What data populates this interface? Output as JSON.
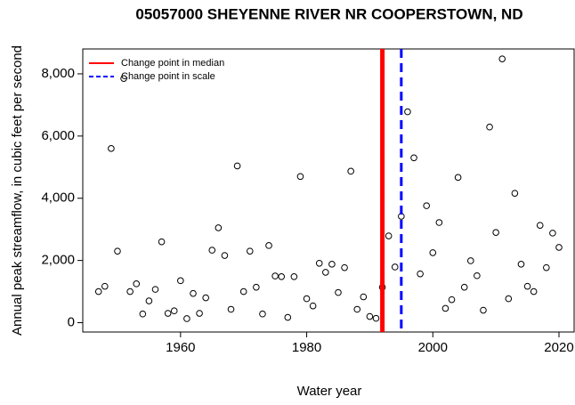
{
  "chart_data": {
    "type": "scatter",
    "title": "05057000 SHEYENNE RIVER NR COOPERSTOWN, ND",
    "x_label": "Water year",
    "y_label": "Annual peak streamflow, in cubic feet per second",
    "xlim": [
      1944.5,
      2022.4
    ],
    "ylim": [
      -300,
      8800
    ],
    "xticks": [
      1960,
      1980,
      2000,
      2020
    ],
    "yticks": [
      0,
      {
        "value": 2000,
        "label": "2,000"
      },
      {
        "value": 4000,
        "label": "4,000"
      },
      {
        "value": 6000,
        "label": "6,000"
      },
      {
        "value": 8000,
        "label": "8,000"
      }
    ],
    "series": [
      {
        "color": "#000000",
        "x": [
          1947,
          1948,
          1949,
          1950,
          1951,
          1952,
          1953,
          1954,
          1955,
          1956,
          1957,
          1958,
          1959,
          1960,
          1961,
          1962,
          1963,
          1964,
          1965,
          1966,
          1967,
          1968,
          1969,
          1970,
          1971,
          1972,
          1973,
          1974,
          1975,
          1976,
          1977,
          1978,
          1979,
          1980,
          1981,
          1982,
          1983,
          1984,
          1985,
          1986,
          1987,
          1988,
          1989,
          1990,
          1991,
          1992,
          1993,
          1994,
          1995,
          1996,
          1997,
          1998,
          1999,
          2000,
          2001,
          2002,
          2003,
          2004,
          2005,
          2006,
          2007,
          2008,
          2009,
          2010,
          2011,
          2012,
          2013,
          2014,
          2015,
          2016,
          2017,
          2018,
          2019,
          2020
        ],
        "values": [
          1000,
          1170,
          5600,
          2300,
          7850,
          1000,
          1250,
          280,
          700,
          1070,
          2600,
          300,
          380,
          1350,
          130,
          940,
          300,
          800,
          2330,
          3050,
          2160,
          430,
          5040,
          1000,
          2300,
          1140,
          280,
          2480,
          1500,
          1480,
          170,
          1480,
          4700,
          770,
          540,
          1910,
          1620,
          1880,
          970,
          1770,
          4870,
          430,
          830,
          200,
          140,
          1140,
          2790,
          1790,
          3420,
          6780,
          5300,
          1570,
          3760,
          2250,
          3220,
          460,
          740,
          4670,
          1140,
          1990,
          1510,
          400,
          6290,
          2900,
          8480,
          770,
          4160,
          1880,
          1170,
          1000,
          3130,
          1770,
          2880,
          2420
        ]
      }
    ],
    "vlines": [
      {
        "name": "Change point in median",
        "value": 1992,
        "color": "#ff0000",
        "dash": false
      },
      {
        "name": "Change point in scale",
        "value": 1995,
        "color": "#0000ff",
        "dash": true
      }
    ]
  }
}
